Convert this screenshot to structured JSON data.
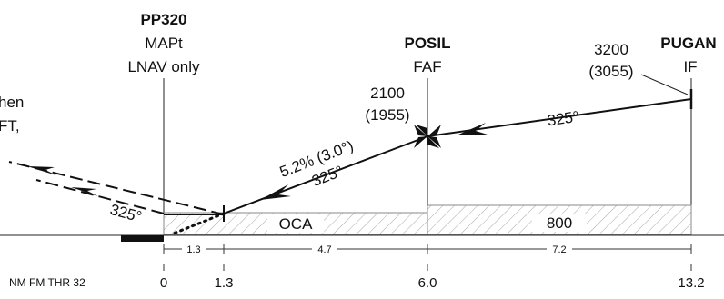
{
  "fixes": {
    "mapt": {
      "name": "PP320",
      "role": "MAPt",
      "note": "LNAV only"
    },
    "faf": {
      "name": "POSIL",
      "role": "FAF",
      "alt": "2100",
      "alt_height": "(1955)"
    },
    "if_fix": {
      "name": "PUGAN",
      "role": "IF",
      "alt": "3200",
      "alt_height": "(3055)"
    }
  },
  "missed_approach_text": {
    "line1": "hen",
    "line2": "FT,"
  },
  "courses": {
    "missed": "325°",
    "final": "325°",
    "intermediate": "325°"
  },
  "gradient": "5.2% (3.0°)",
  "minima": {
    "oca_label": "OCA",
    "if_segment_label": "800"
  },
  "segment_distances": [
    "1.3",
    "4.7",
    "7.2"
  ],
  "axis": {
    "caption": "NM FM THR 32",
    "ticks": [
      "0",
      "1.3",
      "6.0",
      "13.2"
    ]
  },
  "colors": {
    "ink": "#111111",
    "hatch": "#9a9a9a",
    "box": "#8a8a8a"
  }
}
